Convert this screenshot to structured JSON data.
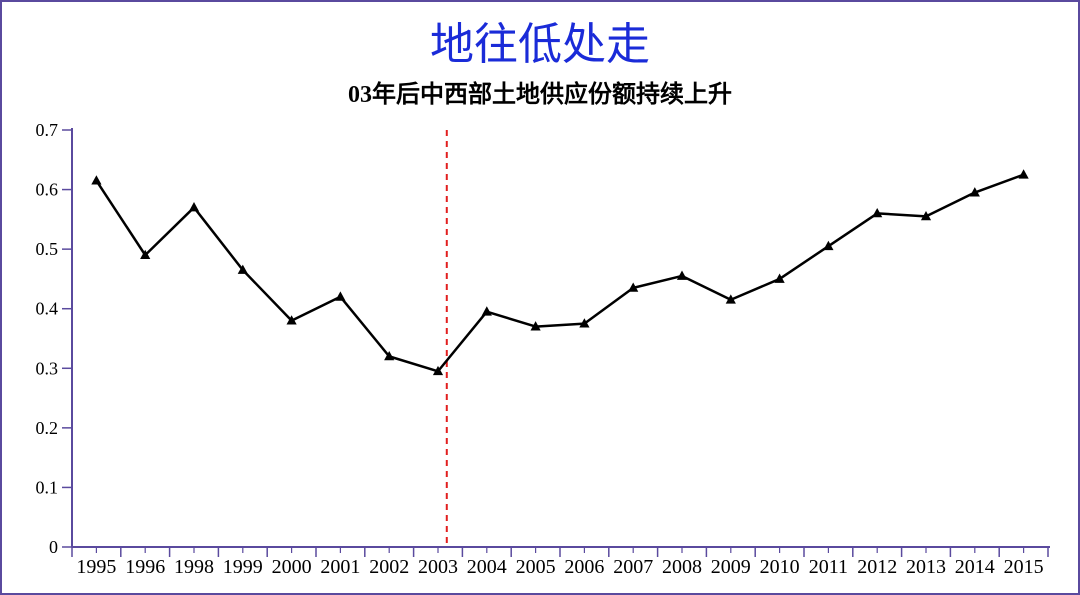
{
  "chart": {
    "type": "line",
    "title": "地往低处走",
    "subtitle": "03年后中西部土地供应份额持续上升",
    "title_color": "#1a2bd8",
    "title_fontsize": 44,
    "subtitle_color": "#000000",
    "subtitle_fontsize": 24,
    "background_color": "#ffffff",
    "frame_border_color": "#5a4a9e",
    "axis_color": "#5a4a9e",
    "axis_width": 2,
    "ylim": [
      0,
      0.7
    ],
    "ytick_step": 0.1,
    "yticks": [
      0,
      0.1,
      0.2,
      0.3,
      0.4,
      0.5,
      0.6,
      0.7
    ],
    "x_categories": [
      "1995",
      "1996",
      "1998",
      "1999",
      "2000",
      "2001",
      "2002",
      "2003",
      "2004",
      "2005",
      "2006",
      "2007",
      "2008",
      "2009",
      "2010",
      "2011",
      "2012",
      "2013",
      "2014",
      "2015"
    ],
    "values": [
      0.615,
      0.49,
      0.57,
      0.465,
      0.38,
      0.42,
      0.32,
      0.295,
      0.395,
      0.37,
      0.375,
      0.435,
      0.455,
      0.415,
      0.45,
      0.505,
      0.56,
      0.555,
      0.595,
      0.625
    ],
    "line_color": "#000000",
    "line_width": 2.5,
    "marker": "triangle",
    "marker_size": 6,
    "marker_color": "#000000",
    "reference_line": {
      "x_category": "2003",
      "color": "#e21f1f",
      "dash": "6,5",
      "width": 2
    },
    "tick_color": "#5a4a9e",
    "tick_length_major": 10,
    "tick_length_minor": 6,
    "label_fontsize_y": 18,
    "label_fontsize_x": 20
  }
}
